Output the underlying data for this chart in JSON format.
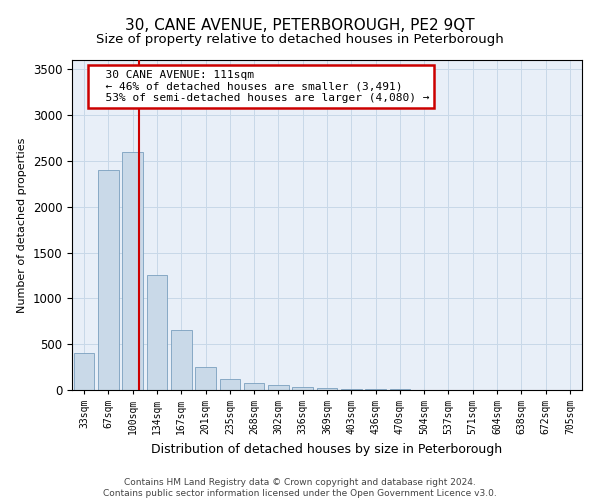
{
  "title": "30, CANE AVENUE, PETERBOROUGH, PE2 9QT",
  "subtitle": "Size of property relative to detached houses in Peterborough",
  "xlabel": "Distribution of detached houses by size in Peterborough",
  "ylabel": "Number of detached properties",
  "footer_line1": "Contains HM Land Registry data © Crown copyright and database right 2024.",
  "footer_line2": "Contains public sector information licensed under the Open Government Licence v3.0.",
  "categories": [
    "33sqm",
    "67sqm",
    "100sqm",
    "134sqm",
    "167sqm",
    "201sqm",
    "235sqm",
    "268sqm",
    "302sqm",
    "336sqm",
    "369sqm",
    "403sqm",
    "436sqm",
    "470sqm",
    "504sqm",
    "537sqm",
    "571sqm",
    "604sqm",
    "638sqm",
    "672sqm",
    "705sqm"
  ],
  "values": [
    400,
    2400,
    2600,
    1250,
    650,
    250,
    120,
    80,
    55,
    35,
    20,
    10,
    8,
    6,
    5,
    4,
    3,
    3,
    2,
    2,
    1
  ],
  "bar_color": "#c9d9e8",
  "bar_edge_color": "#7aa0be",
  "vline_x": 2.27,
  "vline_color": "#cc0000",
  "annotation_text": "  30 CANE AVENUE: 111sqm\n  ← 46% of detached houses are smaller (3,491)\n  53% of semi-detached houses are larger (4,080) →",
  "annotation_box_color": "#cc0000",
  "ylim": [
    0,
    3600
  ],
  "yticks": [
    0,
    500,
    1000,
    1500,
    2000,
    2500,
    3000,
    3500
  ],
  "grid_color": "#c8d8e8",
  "bg_color": "#e8eff8",
  "title_fontsize": 11,
  "subtitle_fontsize": 9.5,
  "ylabel_fontsize": 8,
  "xlabel_fontsize": 9
}
